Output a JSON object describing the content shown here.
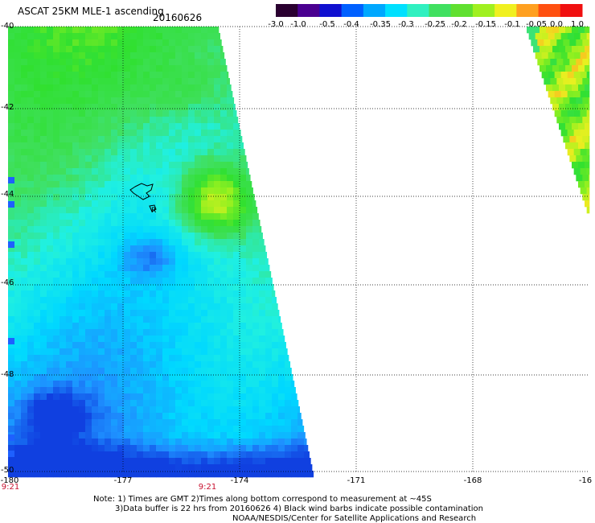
{
  "header": {
    "title": "ASCAT 25KM MLE-1 ascending",
    "date": "20160626"
  },
  "colorbar": {
    "tick_labels": [
      "-3.0",
      "-1.0",
      "-0.5",
      "-0.4",
      "-0.35",
      "-0.3",
      "-0.25",
      "-0.2",
      "-0.15",
      "-0.1",
      "-0.05",
      "0.0",
      "1.0"
    ],
    "colors": [
      "#2a0030",
      "#4a0090",
      "#1010d0",
      "#0060ff",
      "#00a8ff",
      "#00e0ff",
      "#30f0c0",
      "#40e060",
      "#60e030",
      "#a0f020",
      "#f0f020",
      "#ffa020",
      "#ff5010",
      "#f01010"
    ]
  },
  "map": {
    "lat_labels": [
      "-40",
      "-42",
      "-44",
      "-46",
      "-48",
      "-50"
    ],
    "lon_labels": [
      "-180",
      "-177",
      "-174",
      "-171",
      "-168",
      "-16"
    ],
    "time_labels": [
      "9:21",
      "9:21"
    ],
    "island_marker": "R",
    "contamination_color": "#000000"
  },
  "notes": {
    "line1": "Note: 1) Times are GMT 2)Times along bottom correspond to measurement at ~45S",
    "line2": "3)Data buffer is 22 hrs from 20160626 4) Black wind barbs indicate possible contamination",
    "line3": "NOAA/NESDIS/Center for Satellite Applications and Research"
  }
}
